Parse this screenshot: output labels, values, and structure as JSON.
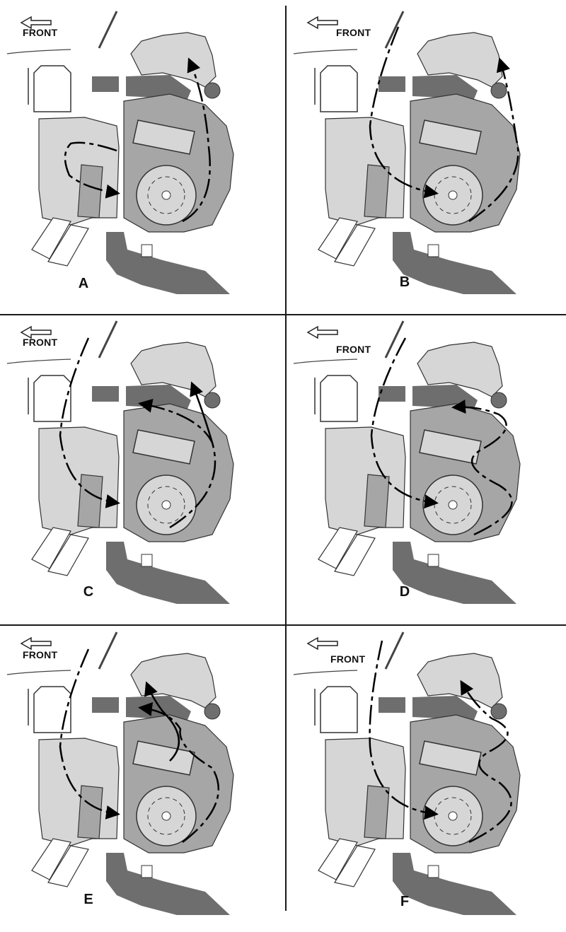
{
  "front_label": "FRONT",
  "panels": [
    {
      "id": "A",
      "letter": "A"
    },
    {
      "id": "B",
      "letter": "B"
    },
    {
      "id": "C",
      "letter": "C"
    },
    {
      "id": "D",
      "letter": "D"
    },
    {
      "id": "E",
      "letter": "E"
    },
    {
      "id": "F",
      "letter": "F"
    }
  ],
  "colors": {
    "light_fill": "#d6d6d6",
    "mid_fill": "#a6a6a6",
    "dark_fill": "#6e6e6e",
    "outline": "#333333",
    "flow_line": "#000000"
  }
}
